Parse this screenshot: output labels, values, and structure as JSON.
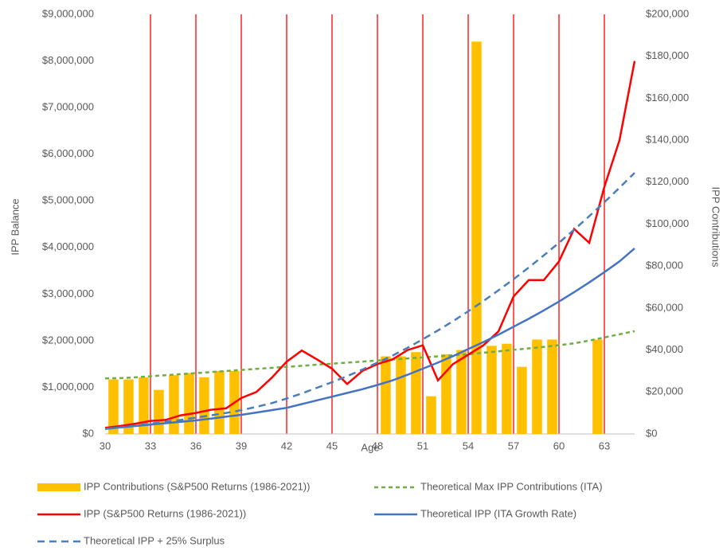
{
  "chart_data": {
    "type": "combo",
    "x_label": "Age",
    "y_label": "IPP Balance",
    "y2_label": "IPP Contributions",
    "x": [
      30,
      31,
      32,
      33,
      34,
      35,
      36,
      37,
      38,
      39,
      40,
      41,
      42,
      43,
      44,
      45,
      46,
      47,
      48,
      49,
      50,
      51,
      52,
      53,
      54,
      55,
      56,
      57,
      58,
      59,
      60,
      61,
      62,
      63,
      64,
      65
    ],
    "xlim": [
      30,
      65
    ],
    "xticks": [
      30,
      33,
      36,
      39,
      42,
      45,
      48,
      51,
      54,
      57,
      60,
      63
    ],
    "x_grid": true,
    "x_grid_color": "#ff0000",
    "ylim": [
      0,
      9000000
    ],
    "yticks": [
      {
        "value": 0,
        "label": "$0"
      },
      {
        "value": 1000000,
        "label": "$1,000,000"
      },
      {
        "value": 2000000,
        "label": "$2,000,000"
      },
      {
        "value": 3000000,
        "label": "$3,000,000"
      },
      {
        "value": 4000000,
        "label": "$4,000,000"
      },
      {
        "value": 5000000,
        "label": "$5,000,000"
      },
      {
        "value": 6000000,
        "label": "$6,000,000"
      },
      {
        "value": 7000000,
        "label": "$7,000,000"
      },
      {
        "value": 8000000,
        "label": "$8,000,000"
      },
      {
        "value": 9000000,
        "label": "$9,000,000"
      }
    ],
    "y2lim": [
      0,
      200000
    ],
    "y2ticks": [
      {
        "value": 0,
        "label": "$0"
      },
      {
        "value": 20000,
        "label": "$20,000"
      },
      {
        "value": 40000,
        "label": "$40,000"
      },
      {
        "value": 60000,
        "label": "$60,000"
      },
      {
        "value": 80000,
        "label": "$80,000"
      },
      {
        "value": 100000,
        "label": "$100,000"
      },
      {
        "value": 120000,
        "label": "$120,000"
      },
      {
        "value": 140000,
        "label": "$140,000"
      },
      {
        "value": 160000,
        "label": "$160,000"
      },
      {
        "value": 180000,
        "label": "$180,000"
      },
      {
        "value": 200000,
        "label": "$200,000"
      }
    ],
    "series": [
      {
        "name": "IPP Contributions (S&P500 Returns (1986-2021))",
        "type": "bar",
        "axis": "y2",
        "color": "#ffc000",
        "values": [
          26000,
          26000,
          27000,
          21000,
          28000,
          29000,
          27000,
          30000,
          30000,
          null,
          null,
          null,
          null,
          null,
          null,
          null,
          null,
          null,
          37000,
          37000,
          39000,
          18000,
          38000,
          40000,
          187000,
          42000,
          43000,
          32000,
          45000,
          45000,
          null,
          null,
          45000,
          null,
          null,
          null
        ]
      },
      {
        "name": "Theoretical Max IPP Contributions (ITA)",
        "type": "line",
        "axis": "y2",
        "color": "#70ad47",
        "dash": "5,4",
        "values": [
          26500,
          26600,
          27000,
          27500,
          28000,
          28500,
          29000,
          29500,
          30000,
          30500,
          31000,
          31500,
          32000,
          32500,
          33000,
          33500,
          34000,
          34500,
          35000,
          35500,
          36000,
          36500,
          37000,
          37500,
          38000,
          38700,
          39400,
          40100,
          40800,
          41500,
          42300,
          43200,
          44500,
          46000,
          47500,
          49000
        ]
      },
      {
        "name": "IPP (S&P500 Returns (1986-2021))",
        "type": "line",
        "axis": "y",
        "color": "#ff0000",
        "values": [
          130000,
          170000,
          220000,
          280000,
          300000,
          400000,
          450000,
          520000,
          550000,
          770000,
          900000,
          1200000,
          1550000,
          1790000,
          1600000,
          1400000,
          1070000,
          1350000,
          1500000,
          1600000,
          1800000,
          1900000,
          1150000,
          1500000,
          1700000,
          1900000,
          2200000,
          2950000,
          3300000,
          3300000,
          3700000,
          4400000,
          4100000,
          5300000,
          6300000,
          8000000
        ]
      },
      {
        "name": "Theoretical IPP (ITA Growth Rate)",
        "type": "line",
        "axis": "y",
        "color": "#4472c4",
        "values": [
          110000,
          140000,
          170000,
          200000,
          230000,
          260000,
          290000,
          330000,
          370000,
          410000,
          460000,
          510000,
          560000,
          640000,
          720000,
          800000,
          880000,
          960000,
          1050000,
          1150000,
          1270000,
          1400000,
          1530000,
          1670000,
          1820000,
          1970000,
          2130000,
          2300000,
          2470000,
          2650000,
          2840000,
          3040000,
          3250000,
          3470000,
          3700000,
          3980000
        ]
      },
      {
        "name": "Theoretical IPP + 25% Surplus",
        "type": "line",
        "axis": "y",
        "color": "#4a7ebb",
        "dash": "9,6",
        "values": [
          110000,
          140000,
          180000,
          220000,
          260000,
          300000,
          350000,
          400000,
          450000,
          510000,
          580000,
          660000,
          760000,
          870000,
          990000,
          1110000,
          1240000,
          1380000,
          1530000,
          1680000,
          1850000,
          2030000,
          2220000,
          2420000,
          2630000,
          2850000,
          3080000,
          3320000,
          3570000,
          3830000,
          4100000,
          4380000,
          4670000,
          4970000,
          5280000,
          5600000
        ]
      }
    ]
  }
}
